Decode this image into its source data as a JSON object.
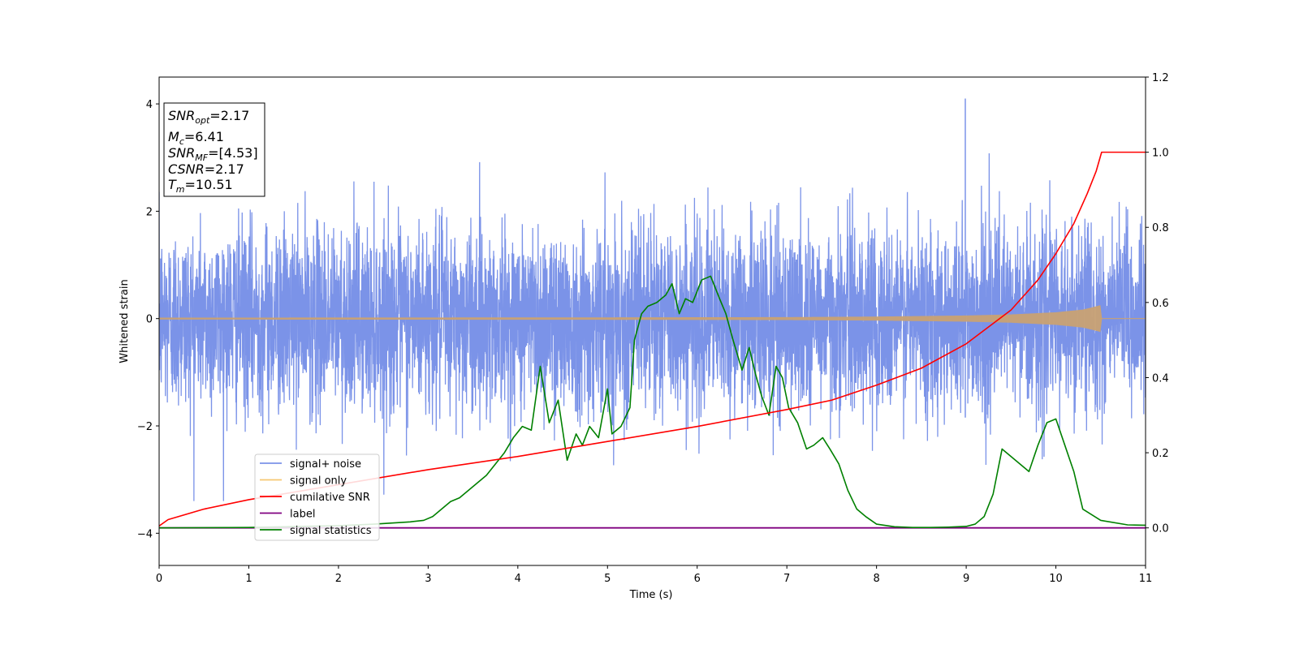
{
  "chart_data": {
    "type": "line",
    "xlabel": "Time (s)",
    "ylabel": "Whitened strain",
    "xlim": [
      0,
      11
    ],
    "ylim": [
      -4.6,
      4.5
    ],
    "y2lim": [
      -0.1,
      1.2
    ],
    "x_ticks": [
      "0",
      "1",
      "2",
      "3",
      "4",
      "5",
      "6",
      "7",
      "8",
      "9",
      "10",
      "11"
    ],
    "y_ticks": [
      "4",
      "2",
      "0",
      "−2",
      "−4"
    ],
    "y2_ticks": [
      "1.2",
      "1.0",
      "0.8",
      "0.6",
      "0.4",
      "0.2",
      "0.0"
    ],
    "grid": false,
    "legend_position": "lower-left",
    "info_box": {
      "snr_opt": {
        "main": "SNR",
        "sub": "opt",
        "value": "=2.17"
      },
      "mc": {
        "main": "M",
        "sub": "c",
        "value": "=6.41"
      },
      "snr_mf": {
        "main": "SNR",
        "sub": "MF",
        "value": "=[4.53]"
      },
      "csnr": {
        "main": "CSNR",
        "value": "=2.17"
      },
      "tm": {
        "main": "T",
        "sub": "m",
        "value": "=10.51"
      }
    },
    "series": [
      {
        "name": "signal+ noise",
        "axis": "left",
        "color": "#7b93e8",
        "description_values": {
          "noise_std": 0.85,
          "peak": 4.1,
          "peak_x": 8.99
        }
      },
      {
        "name": "signal only",
        "axis": "left",
        "color": "#f6c772",
        "envelope": {
          "x": [
            0,
            5,
            7,
            8,
            9,
            9.5,
            10,
            10.3,
            10.45,
            10.51
          ],
          "amp": [
            0.01,
            0.015,
            0.02,
            0.03,
            0.05,
            0.07,
            0.11,
            0.16,
            0.22,
            0.25
          ]
        }
      },
      {
        "name": "cumilative SNR",
        "axis": "right",
        "color": "#ff0000",
        "x": [
          0,
          0.1,
          0.5,
          1,
          2,
          3,
          4,
          5,
          6,
          7,
          7.5,
          8,
          8.5,
          9,
          9.5,
          9.8,
          10,
          10.2,
          10.35,
          10.45,
          10.51,
          11
        ],
        "values": [
          0.005,
          0.022,
          0.05,
          0.075,
          0.115,
          0.155,
          0.19,
          0.23,
          0.27,
          0.315,
          0.34,
          0.38,
          0.425,
          0.49,
          0.58,
          0.66,
          0.73,
          0.81,
          0.89,
          0.95,
          1.0,
          1.0
        ]
      },
      {
        "name": "label",
        "axis": "right",
        "color": "#800080",
        "x": [
          0,
          11
        ],
        "values": [
          0.0,
          0.0
        ]
      },
      {
        "name": "signal statistics",
        "axis": "right",
        "color": "#008000",
        "x": [
          0,
          1,
          2,
          2.4,
          2.6,
          2.8,
          2.95,
          3.05,
          3.15,
          3.25,
          3.35,
          3.45,
          3.55,
          3.65,
          3.75,
          3.85,
          3.95,
          4.05,
          4.15,
          4.25,
          4.35,
          4.45,
          4.55,
          4.65,
          4.72,
          4.8,
          4.9,
          5.0,
          5.05,
          5.15,
          5.25,
          5.3,
          5.38,
          5.45,
          5.55,
          5.65,
          5.72,
          5.8,
          5.87,
          5.95,
          6.05,
          6.15,
          6.25,
          6.32,
          6.4,
          6.5,
          6.58,
          6.65,
          6.72,
          6.8,
          6.88,
          6.95,
          7.02,
          7.12,
          7.22,
          7.3,
          7.4,
          7.48,
          7.58,
          7.68,
          7.78,
          7.88,
          8.0,
          8.2,
          8.4,
          8.6,
          8.8,
          9.0,
          9.1,
          9.2,
          9.3,
          9.4,
          9.5,
          9.6,
          9.7,
          9.8,
          9.9,
          10.0,
          10.1,
          10.2,
          10.3,
          10.5,
          10.8,
          11.0
        ],
        "values": [
          0.0,
          0.001,
          0.006,
          0.01,
          0.013,
          0.016,
          0.02,
          0.03,
          0.05,
          0.07,
          0.08,
          0.1,
          0.12,
          0.14,
          0.17,
          0.2,
          0.24,
          0.27,
          0.26,
          0.43,
          0.28,
          0.34,
          0.18,
          0.25,
          0.22,
          0.27,
          0.24,
          0.37,
          0.25,
          0.27,
          0.32,
          0.5,
          0.57,
          0.59,
          0.6,
          0.62,
          0.65,
          0.57,
          0.61,
          0.6,
          0.66,
          0.67,
          0.61,
          0.57,
          0.5,
          0.42,
          0.48,
          0.41,
          0.35,
          0.3,
          0.43,
          0.4,
          0.32,
          0.28,
          0.21,
          0.22,
          0.24,
          0.21,
          0.17,
          0.1,
          0.05,
          0.03,
          0.01,
          0.003,
          0.001,
          0.001,
          0.002,
          0.004,
          0.01,
          0.03,
          0.09,
          0.21,
          0.19,
          0.17,
          0.15,
          0.22,
          0.28,
          0.29,
          0.22,
          0.15,
          0.05,
          0.02,
          0.008,
          0.007
        ]
      }
    ]
  }
}
